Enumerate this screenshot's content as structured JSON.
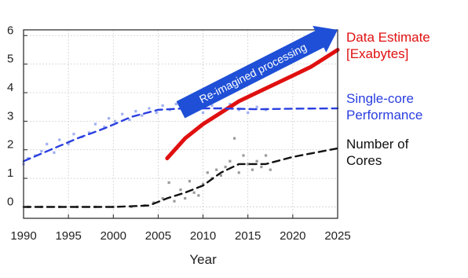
{
  "chart_data": {
    "type": "scatter",
    "xlabel": "Year",
    "ylabel": "",
    "xlim": [
      1990,
      2025
    ],
    "ylim": [
      -0.4,
      6.2
    ],
    "x_ticks": [
      1990,
      1995,
      2000,
      2005,
      2010,
      2015,
      2020,
      2025
    ],
    "y_ticks": [
      0,
      1,
      2,
      3,
      4,
      5,
      6
    ],
    "grid": true,
    "series": [
      {
        "name": "Data Estimate [Exabytes]",
        "label_lines": [
          "Data Estimate",
          "[Exabytes]"
        ],
        "color": "#e01010",
        "style": "solid",
        "x": [
          2006,
          2008,
          2010,
          2012,
          2014,
          2016,
          2018,
          2020,
          2022,
          2025
        ],
        "y": [
          1.7,
          2.4,
          2.9,
          3.3,
          3.7,
          4.0,
          4.3,
          4.6,
          4.9,
          5.5
        ]
      },
      {
        "name": "Single-core Performance",
        "label_lines": [
          "Single-core",
          "Performance"
        ],
        "color": "#2a3fe0",
        "style": "dashed",
        "x": [
          1990,
          1993,
          1996,
          1999,
          2002,
          2005,
          2008,
          2012,
          2016,
          2020,
          2025
        ],
        "y": [
          1.6,
          2.0,
          2.4,
          2.75,
          3.15,
          3.4,
          3.45,
          3.45,
          3.42,
          3.44,
          3.45
        ]
      },
      {
        "name": "Number of Cores",
        "label_lines": [
          "Number of",
          "Cores"
        ],
        "color": "#111111",
        "style": "dashed",
        "x": [
          1990,
          2000,
          2004,
          2006,
          2008,
          2010,
          2012,
          2014,
          2017,
          2020,
          2025
        ],
        "y": [
          0.0,
          0.0,
          0.05,
          0.3,
          0.5,
          0.75,
          1.2,
          1.5,
          1.5,
          1.75,
          2.05
        ]
      }
    ],
    "scatter_points": [
      {
        "group": "single-core",
        "color": "#9fb0f0",
        "points": [
          [
            1990,
            1.5
          ],
          [
            1990.5,
            1.7
          ],
          [
            1991.3,
            1.8
          ],
          [
            1992,
            1.95
          ],
          [
            1992.6,
            2.2
          ],
          [
            1993.4,
            1.9
          ],
          [
            1994,
            2.35
          ],
          [
            1995,
            2.2
          ],
          [
            1995.6,
            2.55
          ],
          [
            1996.5,
            2.45
          ],
          [
            1997.3,
            2.6
          ],
          [
            1998,
            2.9
          ],
          [
            1999,
            2.8
          ],
          [
            1999.5,
            3.1
          ],
          [
            2000.2,
            3.0
          ],
          [
            2001,
            3.25
          ],
          [
            2001.8,
            3.05
          ],
          [
            2002.5,
            3.35
          ],
          [
            2003.2,
            3.2
          ],
          [
            2004,
            3.45
          ],
          [
            2004.8,
            3.3
          ],
          [
            2005.5,
            3.55
          ],
          [
            2006.3,
            3.4
          ],
          [
            2007,
            3.6
          ],
          [
            2008,
            3.35
          ],
          [
            2009,
            3.5
          ],
          [
            2010,
            3.3
          ],
          [
            2011,
            3.55
          ],
          [
            2012,
            3.45
          ],
          [
            2013,
            3.6
          ],
          [
            2014,
            3.4
          ],
          [
            2015,
            3.3
          ],
          [
            2016,
            3.5
          ],
          [
            2017,
            3.4
          ]
        ]
      },
      {
        "group": "cores",
        "color": "#9a9a9a",
        "points": [
          [
            1990.5,
            0.0
          ],
          [
            1992,
            0.0
          ],
          [
            1994,
            0.0
          ],
          [
            1996,
            0.0
          ],
          [
            1998,
            0.0
          ],
          [
            2000,
            0.0
          ],
          [
            2002,
            0.0
          ],
          [
            2003.5,
            0.05
          ],
          [
            2004.5,
            0.15
          ],
          [
            2005.5,
            0.3
          ],
          [
            2006.2,
            0.85
          ],
          [
            2006.8,
            0.2
          ],
          [
            2007.5,
            0.6
          ],
          [
            2008,
            0.3
          ],
          [
            2008.5,
            0.9
          ],
          [
            2009,
            0.5
          ],
          [
            2009.5,
            0.4
          ],
          [
            2010,
            0.8
          ],
          [
            2010.5,
            1.2
          ],
          [
            2011,
            1.0
          ],
          [
            2011.5,
            1.3
          ],
          [
            2012,
            1.1
          ],
          [
            2012.5,
            1.4
          ],
          [
            2013,
            1.6
          ],
          [
            2013.5,
            2.4
          ],
          [
            2014,
            1.2
          ],
          [
            2014.5,
            1.8
          ],
          [
            2015,
            1.5
          ],
          [
            2015.5,
            1.3
          ],
          [
            2016,
            1.6
          ],
          [
            2016.5,
            1.4
          ],
          [
            2017,
            1.8
          ],
          [
            2017.5,
            1.3
          ]
        ]
      }
    ],
    "annotation": {
      "text": "Re-imagined processing",
      "color": "#1e4fd6",
      "from": [
        2007.5,
        3.4
      ],
      "to": [
        2025,
        6.2
      ]
    }
  }
}
